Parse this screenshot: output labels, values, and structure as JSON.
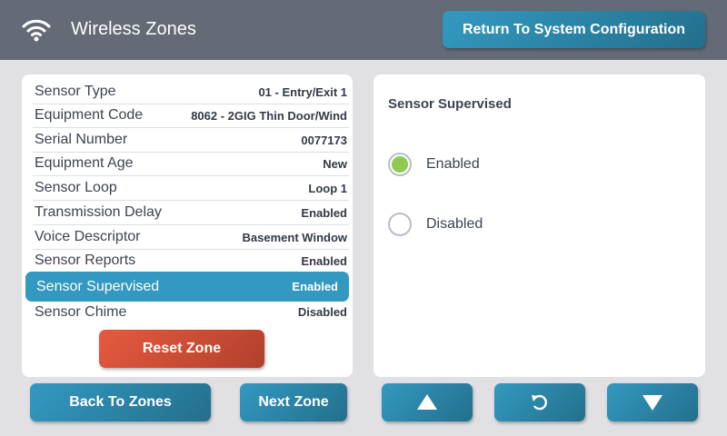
{
  "header": {
    "title": "Wireless Zones",
    "icon": "wifi-icon",
    "return_label": "Return To System Configuration"
  },
  "details": [
    {
      "label": "Sensor Type",
      "value": "01 - Entry/Exit 1"
    },
    {
      "label": "Equipment Code",
      "value": "8062 - 2GIG Thin Door/Wind"
    },
    {
      "label": "Serial Number",
      "value": "0077173"
    },
    {
      "label": "Equipment Age",
      "value": "New"
    },
    {
      "label": "Sensor Loop",
      "value": "Loop 1"
    },
    {
      "label": "Transmission Delay",
      "value": "Enabled"
    },
    {
      "label": "Voice Descriptor",
      "value": "Basement Window"
    },
    {
      "label": "Sensor Reports",
      "value": "Enabled"
    },
    {
      "label": "Sensor Supervised",
      "value": "Enabled",
      "selected": true
    },
    {
      "label": "Sensor Chime",
      "value": "Disabled"
    }
  ],
  "reset_label": "Reset Zone",
  "option_panel": {
    "title": "Sensor Supervised",
    "options": [
      {
        "label": "Enabled",
        "checked": true
      },
      {
        "label": "Disabled",
        "checked": false
      }
    ]
  },
  "footer": {
    "back_label": "Back To Zones",
    "next_label": "Next Zone",
    "up_icon": "arrow-up-icon",
    "undo_icon": "undo-icon",
    "down_icon": "arrow-down-icon"
  },
  "colors": {
    "accent": "#3399c0",
    "danger": "#d44e36",
    "radio_checked": "#8fc951",
    "header": "#646b77"
  }
}
